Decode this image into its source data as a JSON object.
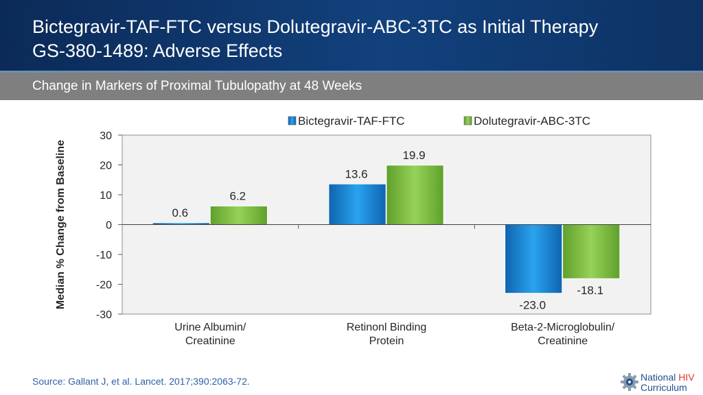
{
  "header": {
    "title_line1": "Bictegravir-TAF-FTC versus Dolutegravir-ABC-3TC as Initial Therapy",
    "title_line2": "GS-380-1489: Adverse Effects",
    "subtitle": "Change in Markers of Proximal Tubulopathy at 48 Weeks"
  },
  "source": "Source: Gallant J, et al. Lancet. 2017;390:2063-72.",
  "logo": {
    "word1": "National",
    "word2": "HIV",
    "word3": "Curriculum"
  },
  "colors": {
    "header_bg": "#12417d",
    "subbar_bg": "#7f7f7f",
    "series1": "#1f8fe0",
    "series2": "#7fc241"
  },
  "chart_data": {
    "type": "bar",
    "ylabel": "Median % Change from Baseline",
    "ylim": [
      -30,
      30
    ],
    "yticks": [
      30,
      20,
      10,
      0,
      -10,
      -20,
      -30
    ],
    "categories": [
      [
        "Urine Albumin/",
        "Creatinine"
      ],
      [
        "Retinonl Binding",
        "Protein"
      ],
      [
        "Beta-2-Microglobulin/",
        "Creatinine"
      ]
    ],
    "series": [
      {
        "name": "Bictegravir-TAF-FTC",
        "values": [
          0.6,
          13.6,
          -23.0
        ],
        "labels": [
          "0.6",
          "13.6",
          "-23.0"
        ],
        "color": "#1f8fe0"
      },
      {
        "name": "Dolutegravir-ABC-3TC",
        "values": [
          6.2,
          19.9,
          -18.1
        ],
        "labels": [
          "6.2",
          "19.9",
          "-18.1"
        ],
        "color": "#7fc241"
      }
    ],
    "legend": "top",
    "grid": false
  }
}
